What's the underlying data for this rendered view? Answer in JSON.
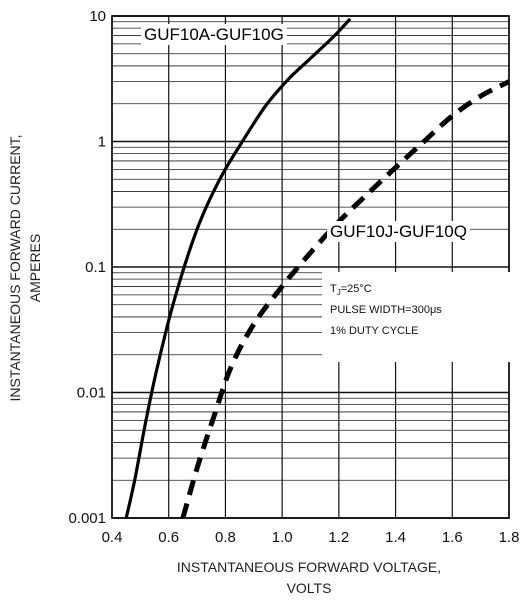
{
  "chart_data": {
    "type": "line",
    "title": "",
    "xlabel": "INSTANTANEOUS FORWARD VOLTAGE, VOLTS",
    "xlabel_lines": [
      "INSTANTANEOUS FORWARD VOLTAGE,",
      "VOLTS"
    ],
    "ylabel_lines": [
      "INSTANTANEOUS FORWARD CURRENT,",
      "AMPERES"
    ],
    "xlim": [
      0.4,
      1.8
    ],
    "ylim": [
      0.001,
      10
    ],
    "y_scale": "log",
    "grid": true,
    "x_ticks": [
      "0.4",
      "0.6",
      "0.8",
      "1.0",
      "1.2",
      "1.4",
      "1.6",
      "1.8"
    ],
    "y_ticks": [
      "0.001",
      "0.01",
      "0.1",
      "1",
      "10"
    ],
    "series": [
      {
        "name": "GUF10A-GUF10G",
        "style": "solid",
        "color": "#000000",
        "points": [
          [
            0.45,
            0.001
          ],
          [
            0.48,
            0.002
          ],
          [
            0.52,
            0.006
          ],
          [
            0.56,
            0.016
          ],
          [
            0.62,
            0.055
          ],
          [
            0.7,
            0.2
          ],
          [
            0.78,
            0.5
          ],
          [
            0.86,
            1.0
          ],
          [
            0.94,
            1.9
          ],
          [
            1.02,
            3.1
          ],
          [
            1.1,
            4.6
          ],
          [
            1.18,
            6.8
          ],
          [
            1.24,
            9.5
          ]
        ]
      },
      {
        "name": "GUF10J-GUF10Q",
        "style": "dashed",
        "color": "#000000",
        "points": [
          [
            0.65,
            0.001
          ],
          [
            0.7,
            0.0025
          ],
          [
            0.76,
            0.0065
          ],
          [
            0.82,
            0.016
          ],
          [
            0.9,
            0.035
          ],
          [
            1.0,
            0.07
          ],
          [
            1.1,
            0.13
          ],
          [
            1.2,
            0.23
          ],
          [
            1.3,
            0.38
          ],
          [
            1.4,
            0.62
          ],
          [
            1.5,
            1.0
          ],
          [
            1.6,
            1.6
          ],
          [
            1.7,
            2.3
          ],
          [
            1.8,
            3.0
          ]
        ]
      }
    ],
    "annotation": {
      "line1_main": "T",
      "line1_sub": "J",
      "line1_rest": "=25°C",
      "line2": "PULSE WIDTH=300μs",
      "line3": "1% DUTY CYCLE"
    }
  }
}
